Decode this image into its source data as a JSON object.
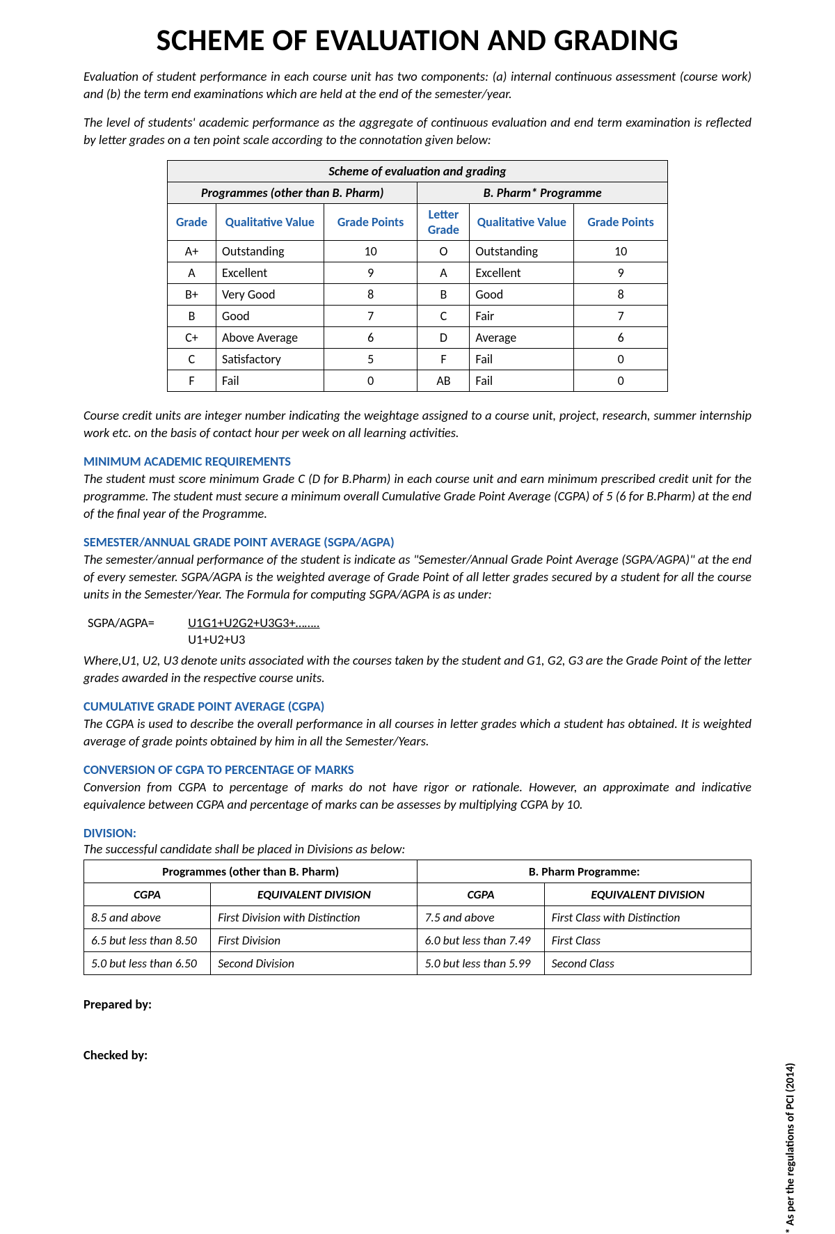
{
  "title": "SCHEME OF EVALUATION AND GRADING",
  "intro1": "Evaluation of student performance in each course unit has two components: (a) internal continuous assessment (course work) and (b) the term end examinations which are held at the end of the semester/year.",
  "intro2": "The level of students' academic performance as the aggregate of continuous evaluation and end term examination is reflected by letter grades on a ten point scale according to the connotation given below:",
  "grading_table": {
    "title": "Scheme of evaluation and grading",
    "left_header": "Programmes (other than B. Pharm)",
    "right_header": "B. Pharm* Programme",
    "cols_left": [
      "Grade",
      "Qualitative Value",
      "Grade Points"
    ],
    "cols_right": [
      "Letter Grade",
      "Qualitative Value",
      "Grade Points"
    ],
    "rows": [
      {
        "lg": "A+",
        "lq": "Outstanding",
        "lp": "10",
        "rg": "O",
        "rq": "Outstanding",
        "rp": "10"
      },
      {
        "lg": "A",
        "lq": "Excellent",
        "lp": "9",
        "rg": "A",
        "rq": "Excellent",
        "rp": "9"
      },
      {
        "lg": "B+",
        "lq": "Very Good",
        "lp": "8",
        "rg": "B",
        "rq": "Good",
        "rp": "8"
      },
      {
        "lg": "B",
        "lq": "Good",
        "lp": "7",
        "rg": "C",
        "rq": "Fair",
        "rp": "7"
      },
      {
        "lg": "C+",
        "lq": "Above Average",
        "lp": "6",
        "rg": "D",
        "rq": "Average",
        "rp": "6"
      },
      {
        "lg": "C",
        "lq": "Satisfactory",
        "lp": "5",
        "rg": "F",
        "rq": "Fail",
        "rp": "0"
      },
      {
        "lg": "F",
        "lq": "Fail",
        "lp": "0",
        "rg": "AB",
        "rq": "Fail",
        "rp": "0"
      }
    ]
  },
  "credit_para": "Course credit units are integer number indicating the weightage assigned to a course unit, project, research, summer internship work etc. on the basis of contact hour per week on all learning activities.",
  "min_req_head": "MINIMUM ACADEMIC REQUIREMENTS",
  "min_req_para": "The student must score minimum Grade C (D for B.Pharm) in each course unit and earn minimum prescribed credit unit for the programme. The student must secure a minimum overall Cumulative Grade Point Average (CGPA) of 5 (6 for B.Pharm) at the end of the final year of the Programme.",
  "sgpa_head": "SEMESTER/ANNUAL GRADE POINT AVERAGE (SGPA/AGPA)",
  "sgpa_para": "The semester/annual performance of the student is indicate as \"Semester/Annual Grade Point Average (SGPA/AGPA)\" at the end of every semester. SGPA/AGPA is the weighted average of Grade Point of all letter grades secured by a student for all the course units in the Semester/Year. The Formula for computing SGPA/AGPA is as under:",
  "formula_label": "SGPA/AGPA=",
  "formula_num": "U1G1+U2G2+U3G3+……..",
  "formula_den": "U1+U2+U3",
  "formula_expl": "Where,U1, U2, U3 denote units associated with the courses taken by the student and G1, G2, G3 are the Grade Point of the letter grades awarded in the respective course units.",
  "cgpa_head": "CUMULATIVE GRADE POINT AVERAGE (CGPA)",
  "cgpa_para": "The CGPA is used to describe the overall performance in all courses in letter grades which a student has obtained. It is weighted average of grade points obtained by him in all the Semester/Years.",
  "conv_head": "CONVERSION OF CGPA TO PERCENTAGE OF MARKS",
  "conv_para": "Conversion from CGPA to percentage of marks do not have rigor or rationale. However, an approximate and indicative equivalence between CGPA and percentage of marks can be assesses by multiplying CGPA by 10.",
  "division_head": "DIVISION:",
  "division_para": "The successful candidate shall be placed in Divisions as below:",
  "division_table": {
    "left_header": "Programmes (other than B. Pharm)",
    "right_header": "B. Pharm Programme:",
    "cols": [
      "CGPA",
      "EQUIVALENT DIVISION",
      "CGPA",
      "EQUIVALENT DIVISION"
    ],
    "rows": [
      {
        "lc": "8.5 and above",
        "ld": "First Division with Distinction",
        "rc": "7.5 and above",
        "rd": "First Class with Distinction"
      },
      {
        "lc": "6.5 but less than 8.50",
        "ld": "First Division",
        "rc": "6.0 but less than 7.49",
        "rd": "First Class"
      },
      {
        "lc": "5.0 but less than 6.50",
        "ld": "Second Division",
        "rc": "5.0 but less than 5.99",
        "rd": "Second Class"
      }
    ]
  },
  "prepared_by": "Prepared by",
  "checked_by": "Checked by",
  "sidenote": "* As per the regulations of PCI (2014)",
  "colors": {
    "heading": "#1f5fa8",
    "table_header_bg": "#eeeeee",
    "border": "#000000",
    "background": "#ffffff"
  }
}
